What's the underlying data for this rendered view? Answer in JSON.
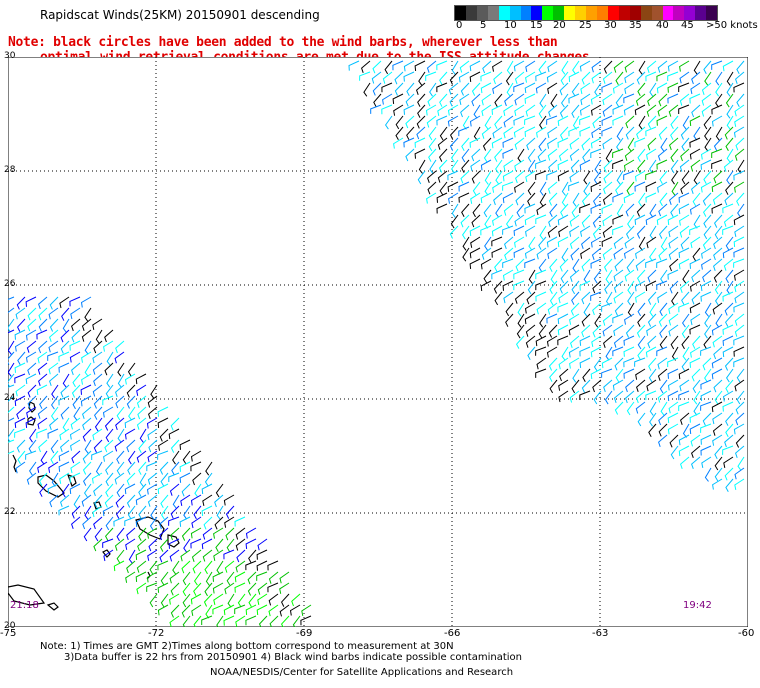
{
  "title": "Rapidscat Winds(25KM) 20150901 descending",
  "notice": {
    "line1": "Note: black circles have been added to the wind barbs, wherever less than",
    "line2": "optimal wind retrieval conditions are met due to the ISS attitude changes."
  },
  "legend": {
    "colors": [
      "#000000",
      "#3a3a3a",
      "#5a5a5a",
      "#7a7a7a",
      "#00ffff",
      "#00bfff",
      "#0080ff",
      "#0000ff",
      "#00ff00",
      "#00c000",
      "#ffff00",
      "#ffd000",
      "#ffa000",
      "#ff7f00",
      "#ff0000",
      "#c00000",
      "#a00000",
      "#8b4513",
      "#a0522d",
      "#ff00ff",
      "#c000c0",
      "#9400d3",
      "#5a0090",
      "#3a0050"
    ],
    "labels": [
      "0",
      "5",
      "10",
      "15",
      "20",
      "25",
      "30",
      "35",
      "40",
      "45",
      ">50 knots"
    ]
  },
  "axes": {
    "y_ticks": [
      "30",
      "28",
      "26",
      "24",
      "22",
      "20"
    ],
    "x_ticks": [
      "-75",
      "-72",
      "-69",
      "-66",
      "-63",
      "-60"
    ]
  },
  "times": {
    "left": "21:18",
    "right": "19:42"
  },
  "footer": {
    "line1": "Note: 1) Times are GMT 2)Times along bottom correspond to measurement at 30N",
    "line2": "3)Data buffer is 22 hrs from 20150901 4) Black wind barbs indicate possible contamination",
    "line3": "NOAA/NESDIS/Center for Satellite Applications and Research"
  }
}
